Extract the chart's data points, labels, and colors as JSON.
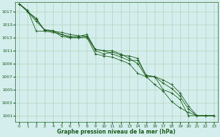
{
  "title": "Graphe pression niveau de la mer (hPa)",
  "background_color": "#d4eeed",
  "grid_color": "#a8cca8",
  "line_color": "#1a5c1a",
  "xlim": [
    -0.5,
    23.5
  ],
  "ylim": [
    1000.0,
    1018.5
  ],
  "yticks": [
    1001,
    1003,
    1005,
    1007,
    1009,
    1011,
    1013,
    1015,
    1017
  ],
  "xticks": [
    0,
    1,
    2,
    3,
    4,
    5,
    6,
    7,
    8,
    9,
    10,
    11,
    12,
    13,
    14,
    15,
    16,
    17,
    18,
    19,
    20,
    21,
    22,
    23
  ],
  "xtick_labels": [
    "0",
    "1",
    "2",
    "3",
    "4",
    "5",
    "6",
    "7",
    "8",
    "9",
    "10",
    "11",
    "12",
    "13",
    "14",
    "15",
    "16",
    "17",
    "18",
    "19",
    "20",
    "21",
    "22",
    "23"
  ],
  "series": [
    [
      1018.2,
      1017.0,
      1016.0,
      1014.1,
      1014.0,
      1013.8,
      1013.5,
      1013.3,
      1013.2,
      1011.0,
      1010.5,
      1010.8,
      1010.3,
      1010.2,
      1009.8,
      1007.2,
      1007.0,
      1005.0,
      1004.5,
      1003.5,
      1001.0,
      1001.0,
      1001.0,
      1001.0
    ],
    [
      1018.2,
      1017.0,
      1015.8,
      1014.2,
      1014.1,
      1013.5,
      1013.2,
      1013.2,
      1013.5,
      1011.2,
      1011.0,
      1010.5,
      1010.0,
      1009.5,
      1009.5,
      1007.2,
      1007.0,
      1006.0,
      1005.2,
      1004.0,
      1002.0,
      1001.0,
      1001.0,
      1001.0
    ],
    [
      1018.2,
      1017.0,
      1015.5,
      1014.2,
      1014.0,
      1013.2,
      1013.0,
      1013.0,
      1013.2,
      1011.2,
      1011.0,
      1011.0,
      1010.5,
      1009.8,
      1009.0,
      1007.0,
      1007.0,
      1006.5,
      1005.8,
      1004.5,
      1002.5,
      1001.0,
      1001.0,
      1001.0
    ],
    [
      1018.2,
      1017.2,
      1014.0,
      1014.0,
      1013.8,
      1013.5,
      1013.0,
      1013.0,
      1013.0,
      1010.5,
      1010.2,
      1010.0,
      1009.5,
      1009.0,
      1007.5,
      1007.0,
      1005.8,
      1004.8,
      1003.2,
      1002.2,
      1001.5,
      1001.0,
      1001.0,
      1001.0
    ]
  ]
}
